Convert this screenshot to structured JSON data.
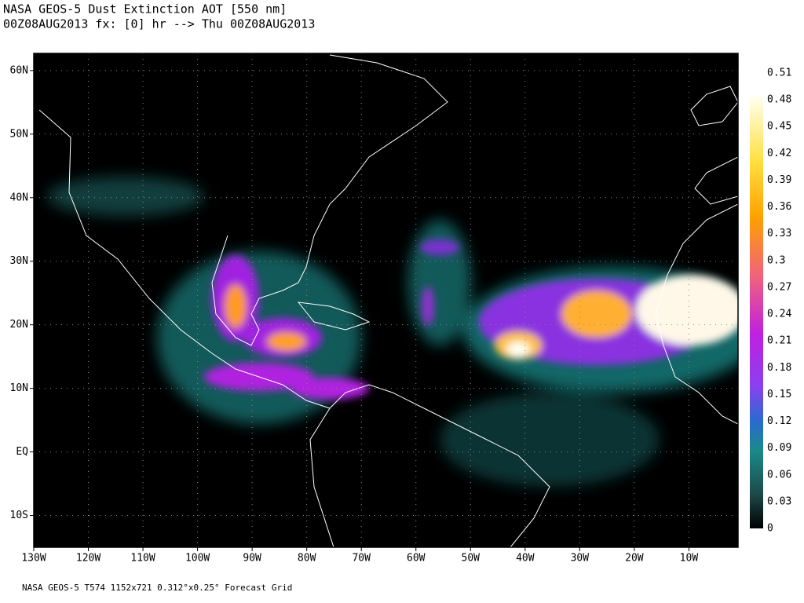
{
  "header": {
    "title": "NASA GEOS-5 Dust Extinction AOT [550 nm]",
    "subtitle": "00Z08AUG2013 fx: [0] hr --> Thu 00Z08AUG2013"
  },
  "map": {
    "xlim": [
      -130,
      -1
    ],
    "ylim": [
      -15,
      62.7
    ],
    "grid": true,
    "xticks": [
      {
        "value": -130,
        "label": "130W"
      },
      {
        "value": -120,
        "label": "120W"
      },
      {
        "value": -110,
        "label": "110W"
      },
      {
        "value": -100,
        "label": "100W"
      },
      {
        "value": -90,
        "label": "90W"
      },
      {
        "value": -80,
        "label": "80W"
      },
      {
        "value": -70,
        "label": "70W"
      },
      {
        "value": -60,
        "label": "60W"
      },
      {
        "value": -50,
        "label": "50W"
      },
      {
        "value": -40,
        "label": "40W"
      },
      {
        "value": -30,
        "label": "30W"
      },
      {
        "value": -20,
        "label": "20W"
      },
      {
        "value": -10,
        "label": "10W"
      }
    ],
    "yticks": [
      {
        "value": 60,
        "label": "60N"
      },
      {
        "value": 50,
        "label": "50N"
      },
      {
        "value": 40,
        "label": "40N"
      },
      {
        "value": 30,
        "label": "30N"
      },
      {
        "value": 20,
        "label": "20N"
      },
      {
        "value": 10,
        "label": "10N"
      },
      {
        "value": 0,
        "label": "EQ"
      },
      {
        "value": -10,
        "label": "10S"
      }
    ]
  },
  "colorbar": {
    "lim": [
      0,
      0.51
    ],
    "ticks": [
      0.51,
      0.48,
      0.45,
      0.42,
      0.39,
      0.36,
      0.33,
      0.3,
      0.27,
      0.24,
      0.21,
      0.18,
      0.15,
      0.12,
      0.09,
      0.06,
      0.03,
      0
    ]
  },
  "footer": "NASA GEOS-5 T574 1152x721 0.312°x0.25° Forecast Grid"
}
